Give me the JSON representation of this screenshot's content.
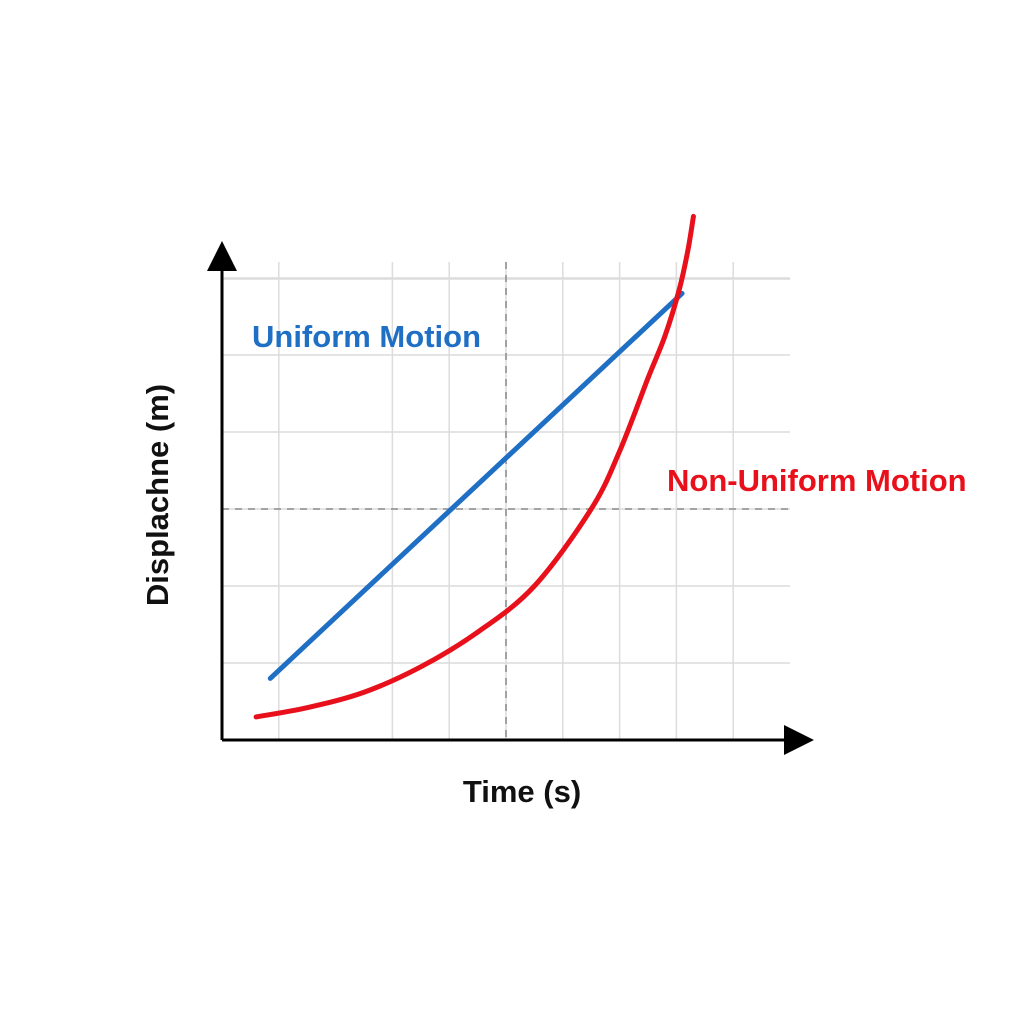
{
  "chart_data": {
    "type": "line",
    "xlabel": "Time (s)",
    "ylabel": "Displachne (m)",
    "title": "",
    "grid": true,
    "xlim": [
      0,
      10
    ],
    "ylim": [
      0,
      10
    ],
    "x_grid": [
      1,
      3,
      4,
      5,
      6,
      7,
      8,
      9
    ],
    "y_grid": [
      1,
      2,
      3,
      4,
      5,
      6
    ],
    "reference_lines": {
      "x": 5,
      "y": 3
    },
    "series": [
      {
        "name": "Uniform Motion",
        "color": "#1f6fc5",
        "x": [
          0.85,
          8.1
        ],
        "y": [
          0.8,
          5.8
        ]
      },
      {
        "name": "Non-Uniform Motion",
        "color": "#e8101a",
        "x": [
          0.6,
          1.5,
          2.5,
          3.5,
          4.5,
          5.5,
          6.5,
          7.0,
          7.5,
          7.8,
          8.05,
          8.2,
          8.3
        ],
        "y": [
          0.3,
          0.42,
          0.62,
          0.95,
          1.4,
          2.0,
          3.0,
          3.75,
          4.7,
          5.25,
          5.85,
          6.35,
          6.8
        ]
      }
    ]
  }
}
